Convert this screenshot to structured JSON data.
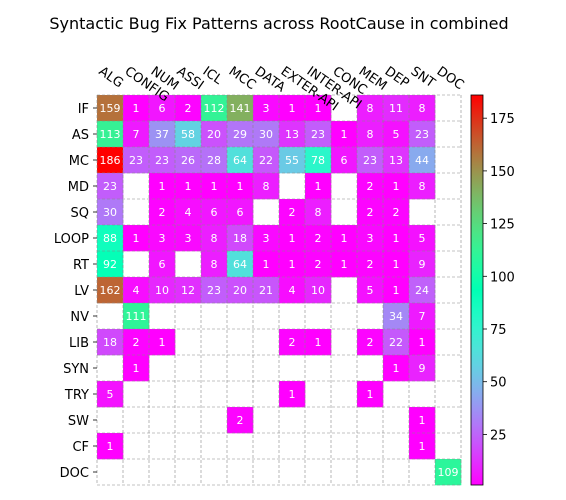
{
  "chart_data": {
    "type": "heatmap",
    "title": "Syntactic Bug Fix Patterns across RootCause in combined",
    "x_categories": [
      "ALG",
      "CONFIG",
      "NUM",
      "ASSI",
      "ICL",
      "MCC",
      "DATA",
      "EXTER-API",
      "INTER-API",
      "CONC",
      "MEM",
      "DEP",
      "SNT",
      "DOC"
    ],
    "y_categories": [
      "IF",
      "AS",
      "MC",
      "MD",
      "SQ",
      "LOOP",
      "RT",
      "LV",
      "NV",
      "LIB",
      "SYN",
      "TRY",
      "SW",
      "CF",
      "DOC"
    ],
    "values": [
      [
        159,
        1,
        6,
        2,
        112,
        141,
        3,
        1,
        1,
        null,
        8,
        11,
        8,
        null
      ],
      [
        113,
        7,
        37,
        58,
        20,
        29,
        30,
        13,
        23,
        1,
        8,
        5,
        23,
        null
      ],
      [
        186,
        23,
        23,
        26,
        28,
        64,
        22,
        55,
        78,
        6,
        23,
        13,
        44,
        null
      ],
      [
        23,
        null,
        1,
        1,
        1,
        1,
        8,
        null,
        1,
        null,
        2,
        1,
        8,
        null
      ],
      [
        30,
        null,
        2,
        4,
        6,
        6,
        null,
        2,
        8,
        null,
        2,
        2,
        null,
        null
      ],
      [
        88,
        1,
        3,
        3,
        8,
        18,
        3,
        1,
        2,
        1,
        3,
        1,
        5,
        null
      ],
      [
        92,
        null,
        6,
        null,
        8,
        64,
        1,
        1,
        2,
        1,
        2,
        1,
        9,
        null
      ],
      [
        162,
        4,
        10,
        12,
        23,
        20,
        21,
        4,
        10,
        null,
        5,
        1,
        24,
        null
      ],
      [
        null,
        111,
        null,
        null,
        null,
        null,
        null,
        null,
        null,
        null,
        null,
        34,
        7,
        null
      ],
      [
        18,
        2,
        1,
        null,
        null,
        null,
        null,
        2,
        1,
        null,
        2,
        22,
        1,
        null
      ],
      [
        null,
        1,
        null,
        null,
        null,
        null,
        null,
        null,
        null,
        null,
        null,
        1,
        9,
        null
      ],
      [
        5,
        null,
        null,
        null,
        null,
        null,
        null,
        1,
        null,
        null,
        1,
        null,
        null,
        null
      ],
      [
        null,
        null,
        null,
        null,
        null,
        2,
        null,
        null,
        null,
        null,
        null,
        null,
        1,
        null
      ],
      [
        1,
        null,
        null,
        null,
        null,
        null,
        null,
        null,
        null,
        null,
        null,
        null,
        1,
        null
      ],
      [
        null,
        null,
        null,
        null,
        null,
        null,
        null,
        null,
        null,
        null,
        null,
        null,
        null,
        109
      ]
    ],
    "colormap": "rainbow",
    "vmin": 1,
    "vmax": 186,
    "colorbar_ticks": [
      25,
      50,
      75,
      100,
      125,
      150,
      175
    ],
    "grid": true
  }
}
